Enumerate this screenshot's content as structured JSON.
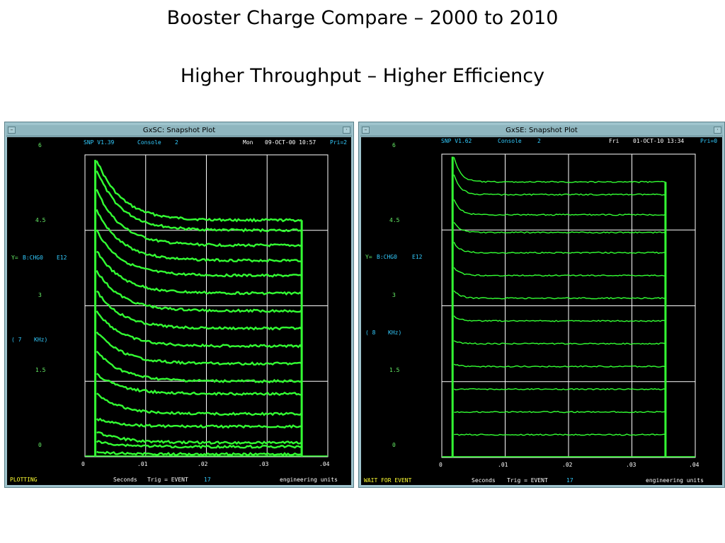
{
  "slide": {
    "title": "Booster Charge Compare – 2000 to 2010",
    "subtitle": "Higher Throughput – Higher Efficiency"
  },
  "colors": {
    "trace": "#33ff33",
    "axis_text": "#66ee66",
    "info_text": "#33ccff",
    "status_text": "#ffff33",
    "grid": "#ffffff",
    "window_frame": "#9fc4cd"
  },
  "left": {
    "window_title": "GxSC: Snapshot Plot",
    "header": {
      "version": "SNP V1.39",
      "console": "Console",
      "console_num": "2",
      "day": "Mon",
      "datetime": "09-OCT-00 10:57",
      "pri": "Pri=2"
    },
    "ylabel": {
      "prefix": "Y=",
      "device": "B:CHG0",
      "units": "E12"
    },
    "rate": {
      "value": "( 7",
      "unit": "KHz)"
    },
    "footer": {
      "status": "PLOTTING",
      "seconds": "Seconds",
      "trig": "Trig = EVENT",
      "event": "17",
      "units": "engineering units"
    }
  },
  "right": {
    "window_title": "GxSE: Snapshot Plot",
    "header": {
      "version": "SNP V1.62",
      "console": "Console",
      "console_num": "2",
      "day": "Fri",
      "datetime": "01-OCT-10 13:34",
      "pri": "Pri=0"
    },
    "ylabel": {
      "prefix": "Y=",
      "device": "B:CHG0",
      "units": "E12"
    },
    "rate": {
      "value": "( 8",
      "unit": "KHz)"
    },
    "footer": {
      "status": "WAIT FOR EVENT",
      "seconds": "Seconds",
      "trig": "Trig = EVENT",
      "event": "17",
      "units": "engineering units"
    }
  },
  "chart_data": [
    {
      "type": "line",
      "panel": "left",
      "xlim": [
        0,
        0.04
      ],
      "ylim": [
        0,
        6
      ],
      "x_tick_labels": [
        "0",
        ".01",
        ".02",
        ".03",
        ".04"
      ],
      "y_tick_labels": [
        "0",
        "1.5",
        "3",
        "4.5",
        "6"
      ],
      "grid": true,
      "trace_start_s": 0.0017,
      "trace_end_s": 0.0357,
      "series": [
        {
          "start": 5.9,
          "end": 4.7
        },
        {
          "start": 5.7,
          "end": 4.5
        },
        {
          "start": 5.3,
          "end": 4.2
        },
        {
          "start": 4.9,
          "end": 3.9
        },
        {
          "start": 4.5,
          "end": 3.6
        },
        {
          "start": 4.1,
          "end": 3.25
        },
        {
          "start": 3.7,
          "end": 2.9
        },
        {
          "start": 3.3,
          "end": 2.55
        },
        {
          "start": 2.9,
          "end": 2.2
        },
        {
          "start": 2.5,
          "end": 1.85
        },
        {
          "start": 2.1,
          "end": 1.5
        },
        {
          "start": 1.65,
          "end": 1.25
        },
        {
          "start": 1.25,
          "end": 0.85
        },
        {
          "start": 0.75,
          "end": 0.6
        },
        {
          "start": 0.5,
          "end": 0.28
        },
        {
          "start": 0.3,
          "end": 0.2
        },
        {
          "start": 0.1,
          "end": 0.05
        }
      ]
    },
    {
      "type": "line",
      "panel": "right",
      "xlim": [
        0,
        0.04
      ],
      "ylim": [
        0,
        6
      ],
      "x_tick_labels": [
        "0",
        ".01",
        ".02",
        ".03",
        ".04"
      ],
      "y_tick_labels": [
        "0",
        "1.5",
        "3",
        "4.5",
        "6"
      ],
      "grid": true,
      "trace_start_s": 0.0017,
      "trace_end_s": 0.0353,
      "series": [
        {
          "start": 5.95,
          "end": 5.45
        },
        {
          "start": 5.6,
          "end": 5.2
        },
        {
          "start": 5.1,
          "end": 4.8
        },
        {
          "start": 4.65,
          "end": 4.45
        },
        {
          "start": 4.25,
          "end": 4.05
        },
        {
          "start": 3.75,
          "end": 3.6
        },
        {
          "start": 3.3,
          "end": 3.15
        },
        {
          "start": 2.8,
          "end": 2.7
        },
        {
          "start": 2.3,
          "end": 2.25
        },
        {
          "start": 1.85,
          "end": 1.8
        },
        {
          "start": 1.35,
          "end": 1.35
        },
        {
          "start": 0.9,
          "end": 0.9
        },
        {
          "start": 0.45,
          "end": 0.45
        }
      ]
    }
  ]
}
